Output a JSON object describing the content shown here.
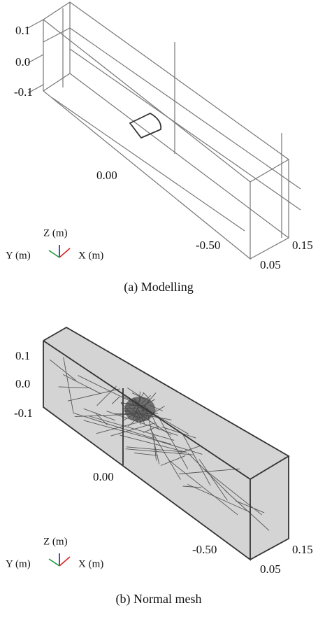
{
  "panels": [
    {
      "tick_labels": [
        "0.1",
        "0.0",
        "-0.1",
        "0.00",
        "-0.50",
        "0.15",
        "0.05"
      ],
      "axes": {
        "z": "Z (m)",
        "y": "Y (m)",
        "x": "X (m)"
      },
      "caption": "(a) Modelling"
    },
    {
      "tick_labels": [
        "0.1",
        "0.0",
        "-0.1",
        "0.00",
        "-0.50",
        "0.15",
        "0.05"
      ],
      "axes": {
        "z": "Z (m)",
        "y": "Y (m)",
        "x": "X (m)"
      },
      "caption": "(b) Normal mesh"
    }
  ]
}
